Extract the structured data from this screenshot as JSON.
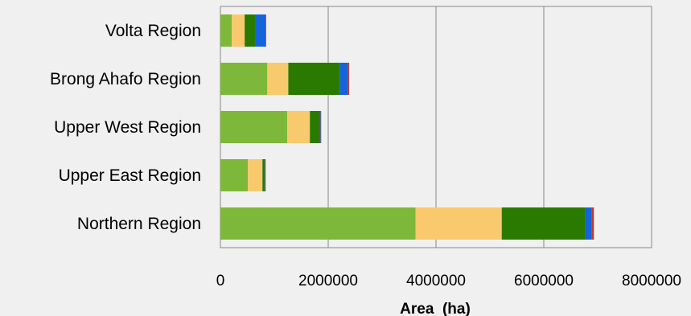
{
  "chart_data": {
    "type": "bar",
    "orientation": "horizontal",
    "stacked": true,
    "title": "",
    "xlabel": "Area  (ha)",
    "ylabel": "",
    "xlim": [
      0,
      8000000
    ],
    "xticks": [
      "0",
      "2000000",
      "4000000",
      "6000000",
      "8000000"
    ],
    "grid": "vertical",
    "legend": "none",
    "categories": [
      "Volta Region",
      "Brong Ahafo Region",
      "Upper West Region",
      "Upper East Region",
      "Northern Region"
    ],
    "series": [
      {
        "color": "#7db83a",
        "values": [
          210000,
          870000,
          1240000,
          510000,
          3620000
        ]
      },
      {
        "color": "#f9c96d",
        "values": [
          240000,
          390000,
          420000,
          270000,
          1600000
        ]
      },
      {
        "color": "#2a7a00",
        "values": [
          200000,
          960000,
          190000,
          40000,
          1550000
        ]
      },
      {
        "color": "#1464dc",
        "values": [
          190000,
          150000,
          10000,
          10000,
          120000
        ]
      },
      {
        "color": "#c0392b",
        "values": [
          10000,
          20000,
          10000,
          10000,
          40000
        ]
      }
    ]
  }
}
